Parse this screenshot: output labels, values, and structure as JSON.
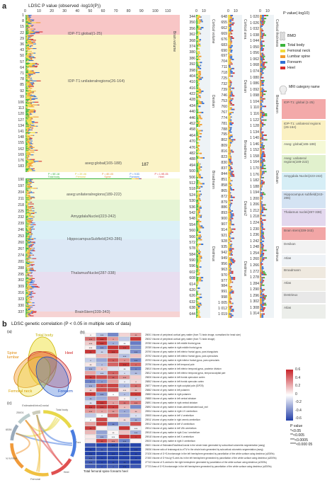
{
  "panel_a": {
    "letter": "a",
    "title": "LDSC P value (observed -log10(P))",
    "x_ticks": [
      "0",
      "10",
      "20",
      "30",
      "40",
      "50",
      "60",
      "70",
      "80",
      "90",
      "100",
      "110"
    ],
    "y_ticks": [
      "1",
      "8",
      "15",
      "22",
      "29",
      "36",
      "43",
      "50",
      "57",
      "64",
      "71",
      "78",
      "85",
      "92",
      "99",
      "106",
      "113",
      "120",
      "127",
      "134",
      "141",
      "148",
      "155",
      "162",
      "169",
      "176",
      "183",
      "190",
      "197",
      "204",
      "211",
      "218",
      "225",
      "232",
      "239",
      "246",
      "253",
      "260",
      "267",
      "274",
      "281",
      "288",
      "295",
      "302",
      "309",
      "316",
      "323",
      "330",
      "337"
    ],
    "bands": [
      {
        "label": "IDP-T1:global(1-25)",
        "color": "#f9c9c9"
      },
      {
        "label": "IDP-T1:unilateralregions(26-164)",
        "color": "#fbf3c6"
      },
      {
        "label": "aseg:global(165-188)",
        "color": "#f7fbdc"
      },
      {
        "label": "aseg:unilateralregions(189-222)",
        "color": "#e6f4d4"
      },
      {
        "label": "AmygdalaNuclei(223-242)",
        "color": "#dcf0f7"
      },
      {
        "label": "HippocampusSubfield(243-286)",
        "color": "#dce8f5"
      },
      {
        "label": "ThalamusNuclei(287-338)",
        "color": "#e8def0"
      },
      {
        "label": "BrainStem(339-343)",
        "color": "#f6d3d3"
      }
    ],
    "brain_volume_label": "Brain volume",
    "peak_label": "187",
    "threshold_labels": [
      {
        "text": "P = 5E-18",
        "sub": "Total body",
        "color": "#2fae2f"
      },
      {
        "text": "P = 2E-06",
        "sub": "Femoral",
        "color": "#d8c22a"
      },
      {
        "text": "P = 8E-05",
        "sub": "Spine",
        "color": "#e58b2a"
      },
      {
        "text": "P = 9.53",
        "sub": "Forearm",
        "color": "#2a6ed8"
      },
      {
        "text": "P = 1.9E-05",
        "sub": "Heel",
        "color": "#d83030"
      }
    ],
    "mini_x_ticks": [
      "0",
      "10"
    ],
    "mini_plots": [
      {
        "ticks": [
          "344",
          "350",
          "356",
          "362",
          "368",
          "374",
          "380",
          "386",
          "392",
          "398",
          "404",
          "410",
          "416",
          "422",
          "428",
          "434",
          "440",
          "446",
          "452",
          "458",
          "464",
          "470",
          "476",
          "482",
          "488",
          "494",
          "500",
          "506",
          "512",
          "518",
          "524",
          "530",
          "536",
          "542",
          "548",
          "554",
          "560",
          "566",
          "572",
          "578",
          "584",
          "590",
          "596",
          "602",
          "608",
          "614",
          "620",
          "626",
          "632",
          "638",
          "644"
        ],
        "labels": [
          "Cortical volume",
          "Desikan",
          "Broadmann",
          "Destrieux"
        ]
      },
      {
        "ticks": [
          "648",
          "655",
          "662",
          "669",
          "676",
          "683",
          "690",
          "697",
          "704",
          "711",
          "718",
          "725",
          "732",
          "739",
          "746",
          "753",
          "760",
          "767",
          "774",
          "781",
          "788",
          "795",
          "802",
          "809",
          "816",
          "823",
          "830",
          "837",
          "844",
          "851",
          "858",
          "865",
          "872",
          "879",
          "886",
          "893",
          "900",
          "907",
          "914",
          "921",
          "928",
          "935",
          "942",
          "949",
          "956",
          "963",
          "970",
          "977",
          "984",
          "991",
          "998",
          "1 005",
          "1 012",
          "1 019"
        ],
        "labels": [
          "Cortical area",
          "Desikan",
          "Broadmann",
          "Desikan2",
          "Destrieux"
        ]
      },
      {
        "ticks": [
          "1 020",
          "1 026",
          "1 032",
          "1 038",
          "1 044",
          "1 050",
          "1 056",
          "1 062",
          "1 068",
          "1 074",
          "1 080",
          "1 086",
          "1 092",
          "1 098",
          "1 104",
          "1 110",
          "1 116",
          "1 122",
          "1 128",
          "1 134",
          "1 140",
          "1 146",
          "1 152",
          "1 158",
          "1 164",
          "1 170",
          "1 176",
          "1 182",
          "1 188",
          "1 194",
          "1 200",
          "1 206",
          "1 212",
          "1 218",
          "1 224",
          "1 230",
          "1 236",
          "1 242",
          "1 248",
          "1 254",
          "1 260",
          "1 266",
          "1 272",
          "1 278",
          "1 284",
          "1 290",
          "1 296",
          "1 302",
          "1 308",
          "1 314"
        ],
        "labels": [
          "Cortical thickness",
          "Broadmann",
          "Desikan",
          "Destrieux"
        ]
      }
    ],
    "legend": {
      "pvalue_title": "P value(-log10)",
      "bmd_title": "BMD",
      "bmd_items": [
        {
          "label": "Total body",
          "color": "#3cb43c"
        },
        {
          "label": "Femoral neck",
          "color": "#f0dc3c"
        },
        {
          "label": "Lumbar spine",
          "color": "#f29a2e"
        },
        {
          "label": "Forearm",
          "color": "#2f6fd6"
        },
        {
          "label": "Heel",
          "color": "#d62f2f"
        }
      ],
      "mri_title": "MRI category name",
      "categories": [
        {
          "label": "IDP-T1: global (1-25)",
          "color": "#f3a9a9"
        },
        {
          "label": "IDP-T1: unilateral regions (26-164)",
          "color": "#fbf1c2"
        },
        {
          "label": "Aseg: global(165-188)",
          "color": "#f5f9d6"
        },
        {
          "label": "Aseg: unilateral regions(189-222)",
          "color": "#e1f1cd"
        },
        {
          "label": "Amygdala Nuclei(223-242)",
          "color": "#d6eef6"
        },
        {
          "label": "Hippocampus subfield(243-286)",
          "color": "#d4e3f3"
        },
        {
          "label": "Thalamus nuclei(287-338)",
          "color": "#e3d8ee"
        },
        {
          "label": "Brain stem(339-343)",
          "color": "#f2a6a6"
        },
        {
          "label": "Desikan",
          "color": "#f2f2f2"
        },
        {
          "label": "Atlas",
          "color": "#eef2f6"
        },
        {
          "label": "Broadmann",
          "color": "#efe9df"
        },
        {
          "label": "Atlas",
          "color": "#f0eee8"
        },
        {
          "label": "Destrieux",
          "color": "#e8e8e8"
        },
        {
          "label": "Atlas",
          "color": "#eceeea"
        }
      ]
    }
  },
  "panel_b": {
    "letter": "b",
    "title": "LDSC genetic correlation (P < 0.05 in multiple sets of data)",
    "sub_a": "(a)",
    "sub_b": "(b)",
    "sub_c": "(c)",
    "venn_labels": [
      {
        "text": "Total body",
        "color": "#d4c000"
      },
      {
        "text": "Spine lumbar",
        "color": "#e08c10"
      },
      {
        "text": "Heel",
        "color": "#d02020"
      },
      {
        "text": "Femoral neck",
        "color": "#d8a000"
      },
      {
        "text": "Forearm",
        "color": "#2050c0"
      }
    ],
    "heatmap_xlabel": "Total femoral spine forearm heel",
    "colorbar_ticks": [
      "0.6",
      "0.4",
      "0.2",
      "0",
      "-0.2",
      "-0.4",
      "-0.6"
    ],
    "pvalue_legend": [
      "P value",
      "*<0.05",
      "**<0.005",
      "***<0.0005",
      "****<0.000 05"
    ],
    "traits": [
      "25001 Volume of peripheral cortical grey matter (from T1 brain image, normalised for head size)",
      "25002 Volume of peripheral cortical grey matter (from T1 brain image)",
      "25780 Volume of grey matter in left middle frontal gyrus",
      "25789 Volume of grey matter in right middle frontal gyrus",
      "25790 Volume of grey matter in left inferior frontal gyrus, pars triangularis",
      "25792 Volume of grey matter in left inferior frontal gyrus, pars opercularis",
      "25793 Volume of grey matter in right inferior frontal gyrus, pars opercularis",
      "25796 Volume of grey matter in left temporal pole",
      "25810 Volume of grey matter in left inferior temporal gyrus, posterior division",
      "25812 Volume of grey matter in left inferior temporal gyrus, temporooccipital part",
      "25826 Volume of grey matter in left frontal operculum cortex",
      "25852 Volume of grey matter in left frontal opercular cortex",
      "25877 Volume of grey matter in right occipital pole (IDP25)",
      "25882 Volume of grey matter in left putamen",
      "25883 Volume of grey matter in right putamen",
      "25885 Volume of grey matter in left ventral striatum",
      "25891 Volume of grey matter in right ventral striatum",
      "25892 Volume of grey matter in brain-stem/brainstem/ocal_mel",
      "25904 Volume of grey matter in right I-IV cerebellum",
      "25905 Volume of grey matter in left V cerebellum",
      "25911 Volume of grey matter in right vermis cerebellum",
      "25912 Volume of grey matter in left VI cerebellum",
      "25914 Volume of grey matter in left VIIb cerebellum",
      "25915 Volume of grey matter in right Crus I cerebellum",
      "25918 Volume of grey matter in left X cerebellum",
      "25920 Volume of grey matter in right X cerebellum",
      "26521 Volume of EstimatedTotalIntraCranial in the whole brain generated by subcortical volumetric segmentation (aseg)",
      "26536 Volume ratio of brainsegvol-to-eTIV in the whole brain generated by subcortical volumetric segmentation (aseg)",
      "27426 Volume of G+S-frontomargin in the left hemisphere generated by parcellation of the white surface using destrieux (a2009s)",
      "27450 Volume of G+Ins-lg+S-cent-ins in the left hemisphere generated by parcellation of the white surface using destrieux (a2009s)",
      "27743 Volume of S-central in the right hemisphere generated by parcellation of the white surface using destrieux (a2009s)",
      "27723 Area of G+S-frontomargin in the left hemisphere generated by parcellation of the white surface using destrieux (a2009s)"
    ],
    "chord_labels": [
      "Total body",
      "Forearm",
      "Heel",
      "Femoral",
      "Spine lumbar",
      "26536",
      "25001",
      "Estimated/intraCranial"
    ]
  }
}
